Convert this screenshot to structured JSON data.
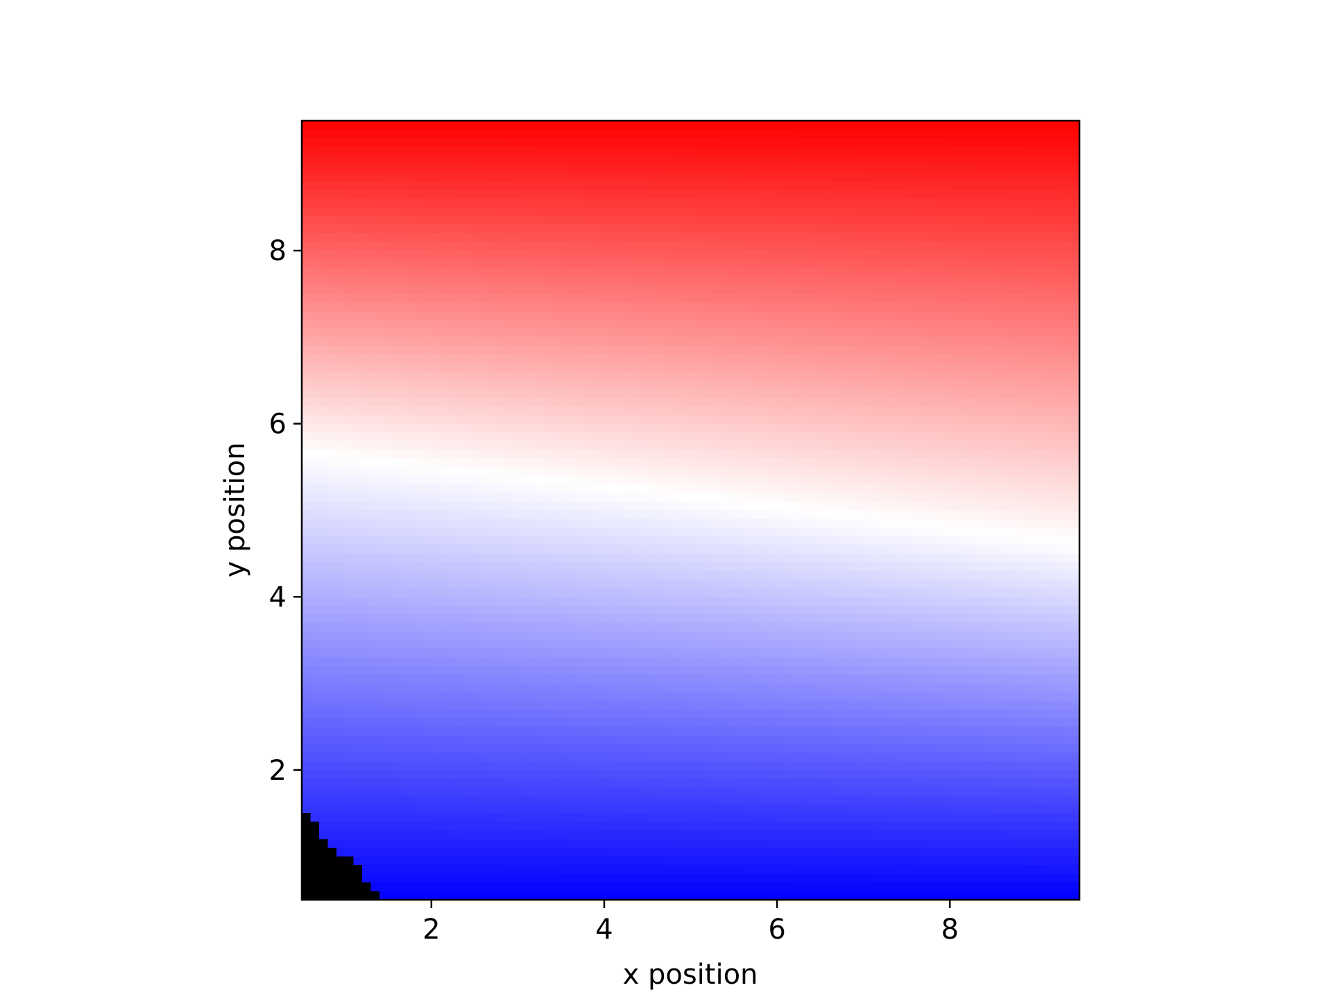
{
  "chart_data": {
    "type": "heatmap",
    "title": "",
    "xlabel": "x position",
    "ylabel": "y position",
    "xlim": [
      0.5,
      9.5
    ],
    "ylim": [
      0.5,
      9.5
    ],
    "x_ticks": [
      "2",
      "4",
      "6",
      "8"
    ],
    "y_ticks": [
      "2",
      "4",
      "6",
      "8"
    ],
    "colormap": "bwr",
    "colormap_colors": [
      "#0000ff",
      "#ffffff",
      "#ff0000"
    ],
    "zero_contour": [
      {
        "x": 1,
        "y": 5.6
      },
      {
        "x": 5,
        "y": 5.15
      },
      {
        "x": 9.5,
        "y": 4.6
      }
    ],
    "masked_region": {
      "color": "#000000",
      "corner": "bottom-left",
      "condition": "x + y < 2"
    },
    "grid": false,
    "legend": "none"
  }
}
